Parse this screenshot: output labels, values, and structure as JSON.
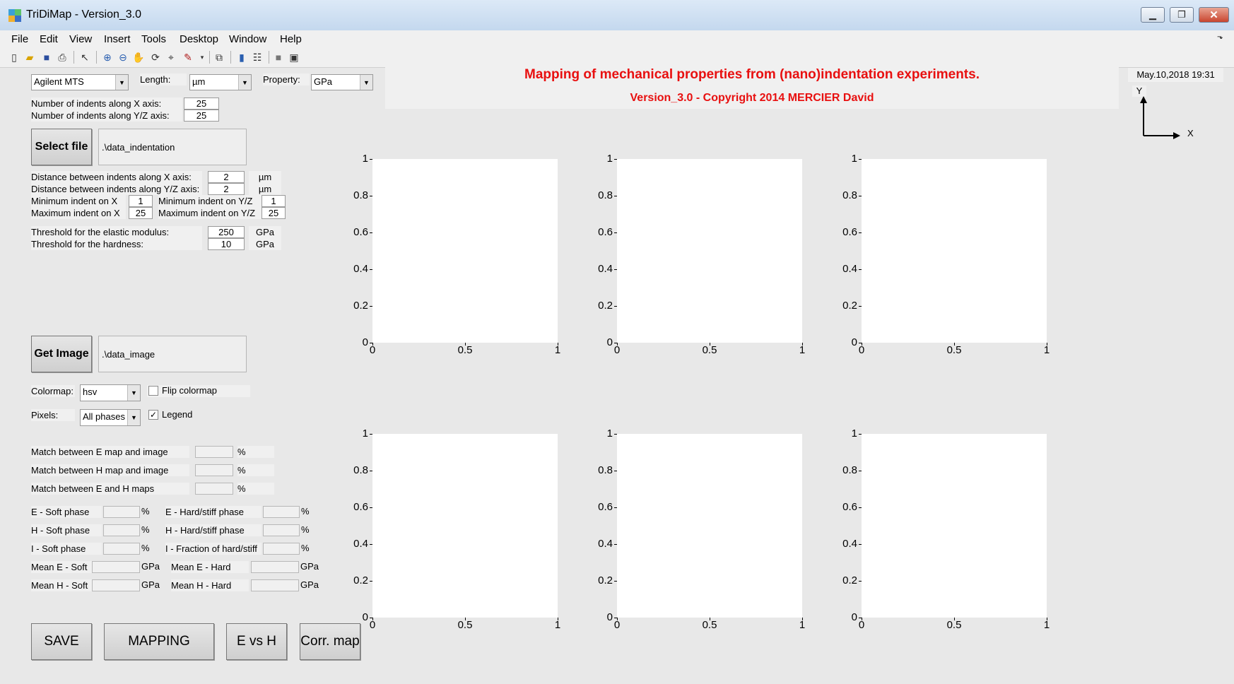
{
  "window": {
    "title": "TriDiMap - Version_3.0"
  },
  "menu": [
    "File",
    "Edit",
    "View",
    "Insert",
    "Tools",
    "Desktop",
    "Window",
    "Help"
  ],
  "toolbar_icons": [
    "new-file-icon",
    "open-folder-icon",
    "save-icon",
    "print-icon",
    "pointer-icon",
    "zoom-in-icon",
    "zoom-out-icon",
    "pan-hand-icon",
    "rotate-3d-icon",
    "data-cursor-icon",
    "brush-icon",
    "link-plot-icon",
    "colorbar-icon",
    "legend-icon",
    "hide-plot-tools-icon",
    "show-plot-tools-icon"
  ],
  "header": {
    "title": "Mapping of mechanical properties from (nano)indentation experiments.",
    "subtitle": "Version_3.0 - Copyright 2014 MERCIER David",
    "date": "May.10,2018 19:31",
    "axis_y": "Y",
    "axis_x": "X"
  },
  "controls": {
    "instrument": "Agilent MTS",
    "length_label": "Length:",
    "length_unit": "µm",
    "property_label": "Property:",
    "property_unit": "GPa",
    "indents_x_label": "Number of indents along X axis:",
    "indents_x": "25",
    "indents_y_label": "Number of indents along Y/Z axis:",
    "indents_y": "25",
    "select_file": "Select file",
    "data_path": ".\\data_indentation",
    "dist_x_label": "Distance between indents along X axis:",
    "dist_x": "2",
    "dist_x_unit": "µm",
    "dist_y_label": "Distance between indents along Y/Z axis:",
    "dist_y": "2",
    "dist_y_unit": "µm",
    "min_x_label": "Minimum indent on X",
    "min_x": "1",
    "min_y_label": "Minimum indent on Y/Z",
    "min_y": "1",
    "max_x_label": "Maximum indent on X",
    "max_x": "25",
    "max_y_label": "Maximum indent on Y/Z",
    "max_y": "25",
    "thr_e_label": "Threshold for the elastic modulus:",
    "thr_e": "250",
    "thr_e_unit": "GPa",
    "thr_h_label": "Threshold for the hardness:",
    "thr_h": "10",
    "thr_h_unit": "GPa",
    "get_image": "Get Image",
    "image_path": ".\\data_image",
    "colormap_label": "Colormap:",
    "colormap": "hsv",
    "flip_colormap": "Flip colormap",
    "flip_checked": false,
    "pixels_label": "Pixels:",
    "pixels": "All phases",
    "legend": "Legend",
    "legend_checked": true,
    "match_e_label": "Match between E map and image",
    "match_h_label": "Match between H map and image",
    "match_eh_label": "Match between E and H maps",
    "percent": "%",
    "e_soft_label": "E - Soft phase",
    "h_soft_label": "H - Soft phase",
    "i_soft_label": "I - Soft phase",
    "e_hard_label": "E - Hard/stiff phase",
    "h_hard_label": "H - Hard/stiff phase",
    "i_hard_label": "I - Fraction of hard/stiff",
    "mean_e_soft_label": "Mean E - Soft",
    "mean_h_soft_label": "Mean H - Soft",
    "mean_e_hard_label": "Mean E - Hard",
    "mean_h_hard_label": "Mean H - Hard",
    "gpa": "GPa"
  },
  "buttons": {
    "save": "SAVE",
    "mapping": "MAPPING",
    "e_vs_h": "E vs H",
    "corr_map": "Corr. map"
  },
  "chart_data": [
    {
      "type": "scatter",
      "x": [],
      "y": [],
      "xlim": [
        0,
        1
      ],
      "ylim": [
        0,
        1
      ],
      "xticks": [
        "0",
        "0.5",
        "1"
      ],
      "yticks": [
        "0",
        "0.2",
        "0.4",
        "0.6",
        "0.8",
        "1"
      ]
    },
    {
      "type": "scatter",
      "x": [],
      "y": [],
      "xlim": [
        0,
        1
      ],
      "ylim": [
        0,
        1
      ],
      "xticks": [
        "0",
        "0.5",
        "1"
      ],
      "yticks": [
        "0",
        "0.2",
        "0.4",
        "0.6",
        "0.8",
        "1"
      ]
    },
    {
      "type": "scatter",
      "x": [],
      "y": [],
      "xlim": [
        0,
        1
      ],
      "ylim": [
        0,
        1
      ],
      "xticks": [
        "0",
        "0.5",
        "1"
      ],
      "yticks": [
        "0",
        "0.2",
        "0.4",
        "0.6",
        "0.8",
        "1"
      ]
    },
    {
      "type": "scatter",
      "x": [],
      "y": [],
      "xlim": [
        0,
        1
      ],
      "ylim": [
        0,
        1
      ],
      "xticks": [
        "0",
        "0.5",
        "1"
      ],
      "yticks": [
        "0",
        "0.2",
        "0.4",
        "0.6",
        "0.8",
        "1"
      ]
    },
    {
      "type": "scatter",
      "x": [],
      "y": [],
      "xlim": [
        0,
        1
      ],
      "ylim": [
        0,
        1
      ],
      "xticks": [
        "0",
        "0.5",
        "1"
      ],
      "yticks": [
        "0",
        "0.2",
        "0.4",
        "0.6",
        "0.8",
        "1"
      ]
    },
    {
      "type": "scatter",
      "x": [],
      "y": [],
      "xlim": [
        0,
        1
      ],
      "ylim": [
        0,
        1
      ],
      "xticks": [
        "0",
        "0.5",
        "1"
      ],
      "yticks": [
        "0",
        "0.2",
        "0.4",
        "0.6",
        "0.8",
        "1"
      ]
    }
  ]
}
